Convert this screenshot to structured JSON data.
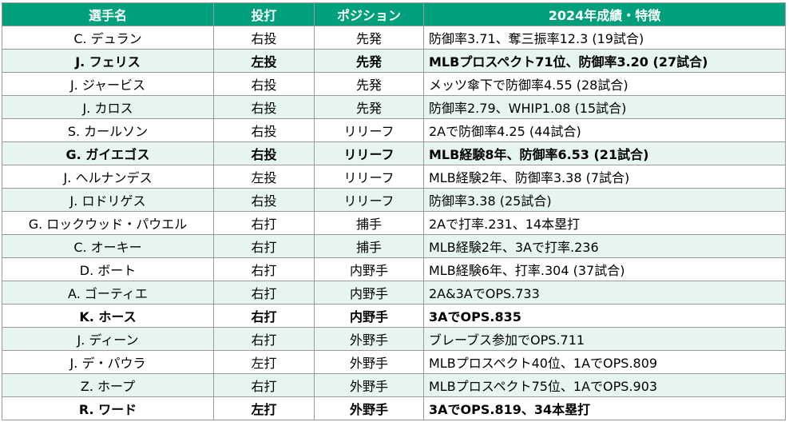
{
  "header": {
    "name": "選手名",
    "bat": "投打",
    "pos": "ポジション",
    "note": "2024年成績・特徴"
  },
  "rows": [
    {
      "name": "C. デュラン",
      "bat": "右投",
      "pos": "先発",
      "note": "防御率3.71、奪三振率12.3 (19試合)",
      "bold": false
    },
    {
      "name": "J. フェリス",
      "bat": "左投",
      "pos": "先発",
      "note": "MLBプロスペクト71位、防御率3.20 (27試合)",
      "bold": true
    },
    {
      "name": "J. ジャービス",
      "bat": "右投",
      "pos": "先発",
      "note": "メッツ傘下で防御率4.55 (28試合)",
      "bold": false
    },
    {
      "name": "J. カロス",
      "bat": "右投",
      "pos": "先発",
      "note": "防御率2.79、WHIP1.08 (15試合)",
      "bold": false
    },
    {
      "name": "S. カールソン",
      "bat": "右投",
      "pos": "リリーフ",
      "note": "2Aで防御率4.25 (44試合)",
      "bold": false
    },
    {
      "name": "G. ガイエゴス",
      "bat": "右投",
      "pos": "リリーフ",
      "note": "MLB経験8年、防御率6.53 (21試合)",
      "bold": true
    },
    {
      "name": "J. ヘルナンデス",
      "bat": "左投",
      "pos": "リリーフ",
      "note": "MLB経験2年、防御率3.38 (7試合)",
      "bold": false
    },
    {
      "name": "J. ロドリゲス",
      "bat": "右投",
      "pos": "リリーフ",
      "note": "防御率3.38 (25試合)",
      "bold": false
    },
    {
      "name": "G. ロックウッド・パウエル",
      "bat": "右打",
      "pos": "捕手",
      "note": "2Aで打率.231、14本塁打",
      "bold": false
    },
    {
      "name": "C. オーキー",
      "bat": "右打",
      "pos": "捕手",
      "note": "MLB経験2年、3Aで打率.236",
      "bold": false
    },
    {
      "name": "D. ボート",
      "bat": "右打",
      "pos": "内野手",
      "note": "MLB経験6年、打率.304 (37試合)",
      "bold": false
    },
    {
      "name": "A. ゴーティエ",
      "bat": "右打",
      "pos": "内野手",
      "note": "2A&3AでOPS.733",
      "bold": false
    },
    {
      "name": "K. ホース",
      "bat": "右打",
      "pos": "内野手",
      "note": "3AでOPS.835",
      "bold": true
    },
    {
      "name": "J. ディーン",
      "bat": "右打",
      "pos": "外野手",
      "note": "ブレーブス参加でOPS.711",
      "bold": false
    },
    {
      "name": "J. デ・パウラ",
      "bat": "左打",
      "pos": "外野手",
      "note": "MLBプロスペクト40位、1AでOPS.809",
      "bold": false
    },
    {
      "name": "Z. ホープ",
      "bat": "右打",
      "pos": "外野手",
      "note": "MLBプロスペクト75位、1AでOPS.903",
      "bold": false
    },
    {
      "name": "R. ワード",
      "bat": "左打",
      "pos": "外野手",
      "note": "3AでOPS.819、34本塁打",
      "bold": true
    }
  ],
  "colors": {
    "header_bg": "#00a07c",
    "header_text": "#ffffff",
    "stripe": "#e6f5f2",
    "border": "#9a9a9a"
  }
}
